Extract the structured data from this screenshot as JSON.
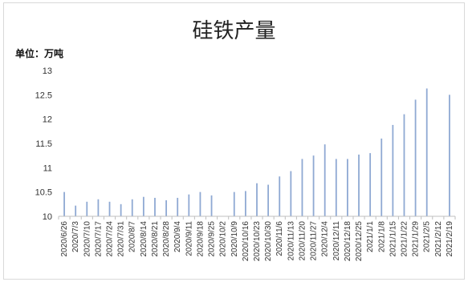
{
  "chart_data": {
    "type": "bar",
    "title": "硅铁产量",
    "unit_label": "单位：万吨",
    "xlabel": "",
    "ylabel": "",
    "ylim": [
      10,
      13
    ],
    "yticks": [
      10,
      10.5,
      11,
      11.5,
      12,
      12.5,
      13
    ],
    "grid": false,
    "categories": [
      "2020/6/26",
      "2020/7/3",
      "2020/7/10",
      "2020/7/17",
      "2020/7/24",
      "2020/7/31",
      "2020/8/7",
      "2020/8/14",
      "2020/8/21",
      "2020/8/28",
      "2020/9/4",
      "2020/9/11",
      "2020/9/18",
      "2020/9/25",
      "2020/10/2",
      "2020/10/9",
      "2020/10/16",
      "2020/10/23",
      "2020/10/30",
      "2020/11/6",
      "2020/11/13",
      "2020/11/20",
      "2020/11/27",
      "2020/12/4",
      "2020/12/11",
      "2020/12/18",
      "2020/12/25",
      "2021/1/1",
      "2021/1/8",
      "2021/1/15",
      "2021/1/22",
      "2021/1/29",
      "2021/2/5",
      "2021/2/12",
      "2021/2/19"
    ],
    "values": [
      10.5,
      10.22,
      10.3,
      10.35,
      10.3,
      10.25,
      10.35,
      10.4,
      10.38,
      10.33,
      10.38,
      10.45,
      10.5,
      10.43,
      null,
      10.5,
      10.52,
      10.68,
      10.65,
      10.82,
      10.93,
      11.18,
      11.25,
      11.48,
      11.18,
      11.18,
      11.27,
      11.3,
      11.6,
      11.88,
      12.1,
      12.4,
      12.63,
      null,
      12.5
    ],
    "bar_color": "#8fa9d3"
  }
}
